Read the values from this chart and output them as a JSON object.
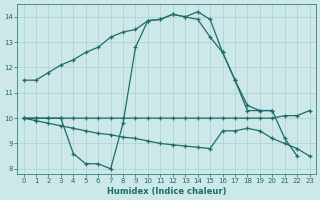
{
  "line_rising": {
    "x": [
      0,
      1,
      2,
      3,
      4,
      5,
      6,
      7,
      8,
      9,
      10,
      11,
      12,
      13,
      14,
      15,
      16,
      17,
      18,
      19,
      20
    ],
    "y": [
      11.5,
      11.5,
      11.8,
      12.1,
      12.3,
      12.6,
      12.8,
      13.2,
      13.4,
      13.5,
      13.85,
      13.9,
      14.1,
      14.0,
      14.2,
      13.9,
      12.6,
      11.5,
      10.3,
      10.3,
      10.3
    ]
  },
  "line_peaked": {
    "x": [
      0,
      1,
      2,
      3,
      4,
      5,
      6,
      7,
      8,
      9,
      10,
      11,
      12,
      13,
      14,
      15,
      16,
      17,
      18,
      19,
      20,
      21,
      22
    ],
    "y": [
      10.0,
      10.0,
      10.0,
      10.0,
      8.6,
      8.2,
      8.2,
      8.0,
      9.8,
      12.8,
      13.85,
      13.9,
      14.1,
      14.0,
      13.9,
      13.2,
      12.6,
      11.5,
      10.5,
      10.3,
      10.3,
      9.2,
      8.5
    ]
  },
  "line_flat": {
    "x": [
      0,
      1,
      2,
      3,
      4,
      5,
      6,
      7,
      8,
      9,
      10,
      11,
      12,
      13,
      14,
      15,
      16,
      17,
      18,
      19,
      20,
      21,
      22,
      23
    ],
    "y": [
      10.0,
      10.0,
      10.0,
      10.0,
      10.0,
      10.0,
      10.0,
      10.0,
      10.0,
      10.0,
      10.0,
      10.0,
      10.0,
      10.0,
      10.0,
      10.0,
      10.0,
      10.0,
      10.0,
      10.0,
      10.0,
      10.1,
      10.1,
      10.3
    ]
  },
  "line_decline": {
    "x": [
      0,
      1,
      2,
      3,
      4,
      5,
      6,
      7,
      8,
      9,
      10,
      11,
      12,
      13,
      14,
      15,
      16,
      17,
      18,
      19,
      20,
      21,
      22,
      23
    ],
    "y": [
      10.0,
      9.9,
      9.8,
      9.7,
      9.6,
      9.5,
      9.4,
      9.35,
      9.25,
      9.2,
      9.1,
      9.0,
      8.95,
      8.9,
      8.85,
      8.8,
      9.5,
      9.5,
      9.6,
      9.5,
      9.2,
      9.0,
      8.8,
      8.5
    ]
  },
  "bg_color": "#cce8e8",
  "grid_color": "#aacfcf",
  "line_color": "#1f6b6b",
  "xlabel": "Humidex (Indice chaleur)",
  "xlim": [
    -0.5,
    23.5
  ],
  "ylim": [
    7.8,
    14.5
  ],
  "yticks": [
    8,
    9,
    10,
    11,
    12,
    13,
    14
  ],
  "xticks": [
    0,
    1,
    2,
    3,
    4,
    5,
    6,
    7,
    8,
    9,
    10,
    11,
    12,
    13,
    14,
    15,
    16,
    17,
    18,
    19,
    20,
    21,
    22,
    23
  ]
}
